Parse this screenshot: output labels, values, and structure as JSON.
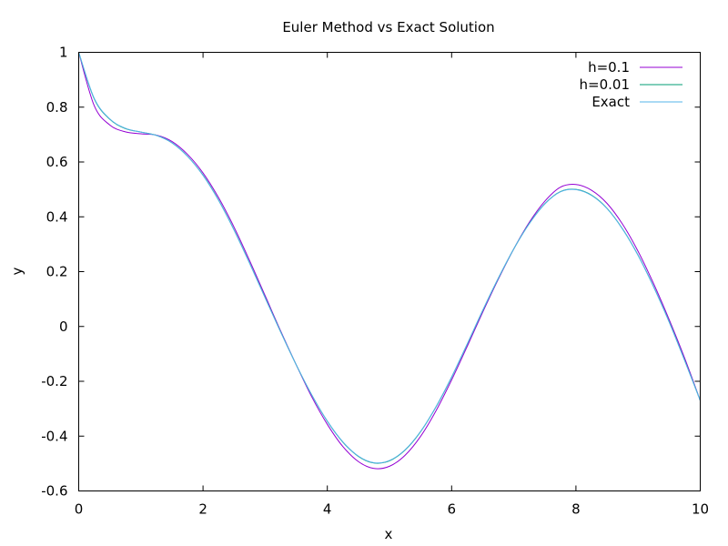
{
  "chart_data": {
    "type": "line",
    "title": "Euler Method vs Exact Solution",
    "xlabel": "x",
    "ylabel": "y",
    "xlim": [
      0,
      10
    ],
    "ylim": [
      -0.6,
      1
    ],
    "grid": false,
    "legend_position": "top-right",
    "x_ticks": [
      "0",
      "2",
      "4",
      "6",
      "8",
      "10"
    ],
    "y_ticks": [
      "-0.6",
      "-0.4",
      "-0.2",
      "0",
      "0.2",
      "0.4",
      "0.6",
      "0.8",
      "1"
    ],
    "x": [
      0,
      0.25,
      0.5,
      0.75,
      1,
      1.25,
      1.5,
      1.75,
      2,
      2.25,
      2.5,
      2.75,
      3,
      3.25,
      3.5,
      3.75,
      4,
      4.25,
      4.5,
      4.75,
      5,
      5.25,
      5.5,
      5.75,
      6,
      6.25,
      6.5,
      6.75,
      7,
      7.25,
      7.5,
      7.75,
      8,
      8.25,
      8.5,
      8.75,
      9,
      9.25,
      9.5,
      9.75,
      10
    ],
    "series": [
      {
        "name": "h=0.1",
        "color": "#9400d3",
        "values": [
          1.0,
          0.805,
          0.735,
          0.71,
          0.703,
          0.698,
          0.675,
          0.628,
          0.56,
          0.47,
          0.362,
          0.24,
          0.112,
          -0.017,
          -0.14,
          -0.257,
          -0.357,
          -0.438,
          -0.493,
          -0.518,
          -0.51,
          -0.47,
          -0.401,
          -0.307,
          -0.195,
          -0.073,
          0.052,
          0.172,
          0.283,
          0.38,
          0.457,
          0.508,
          0.518,
          0.497,
          0.449,
          0.373,
          0.274,
          0.156,
          0.025,
          -0.116,
          -0.27
        ]
      },
      {
        "name": "h=0.01",
        "color": "#009e73",
        "values": [
          1.0,
          0.83,
          0.756,
          0.722,
          0.709,
          0.697,
          0.67,
          0.621,
          0.552,
          0.461,
          0.352,
          0.231,
          0.105,
          -0.02,
          -0.14,
          -0.25,
          -0.346,
          -0.422,
          -0.474,
          -0.498,
          -0.49,
          -0.451,
          -0.384,
          -0.293,
          -0.185,
          -0.065,
          0.058,
          0.175,
          0.283,
          0.376,
          0.448,
          0.492,
          0.5,
          0.479,
          0.431,
          0.356,
          0.26,
          0.145,
          0.017,
          -0.124,
          -0.27
        ]
      },
      {
        "name": "Exact",
        "color": "#56b4e9",
        "values": [
          1.0,
          0.832,
          0.757,
          0.723,
          0.709,
          0.697,
          0.67,
          0.621,
          0.551,
          0.46,
          0.351,
          0.23,
          0.104,
          -0.021,
          -0.14,
          -0.25,
          -0.345,
          -0.421,
          -0.473,
          -0.497,
          -0.489,
          -0.45,
          -0.383,
          -0.292,
          -0.184,
          -0.064,
          0.059,
          0.176,
          0.283,
          0.375,
          0.447,
          0.491,
          0.499,
          0.478,
          0.43,
          0.355,
          0.259,
          0.144,
          0.016,
          -0.125,
          -0.27
        ]
      }
    ]
  }
}
